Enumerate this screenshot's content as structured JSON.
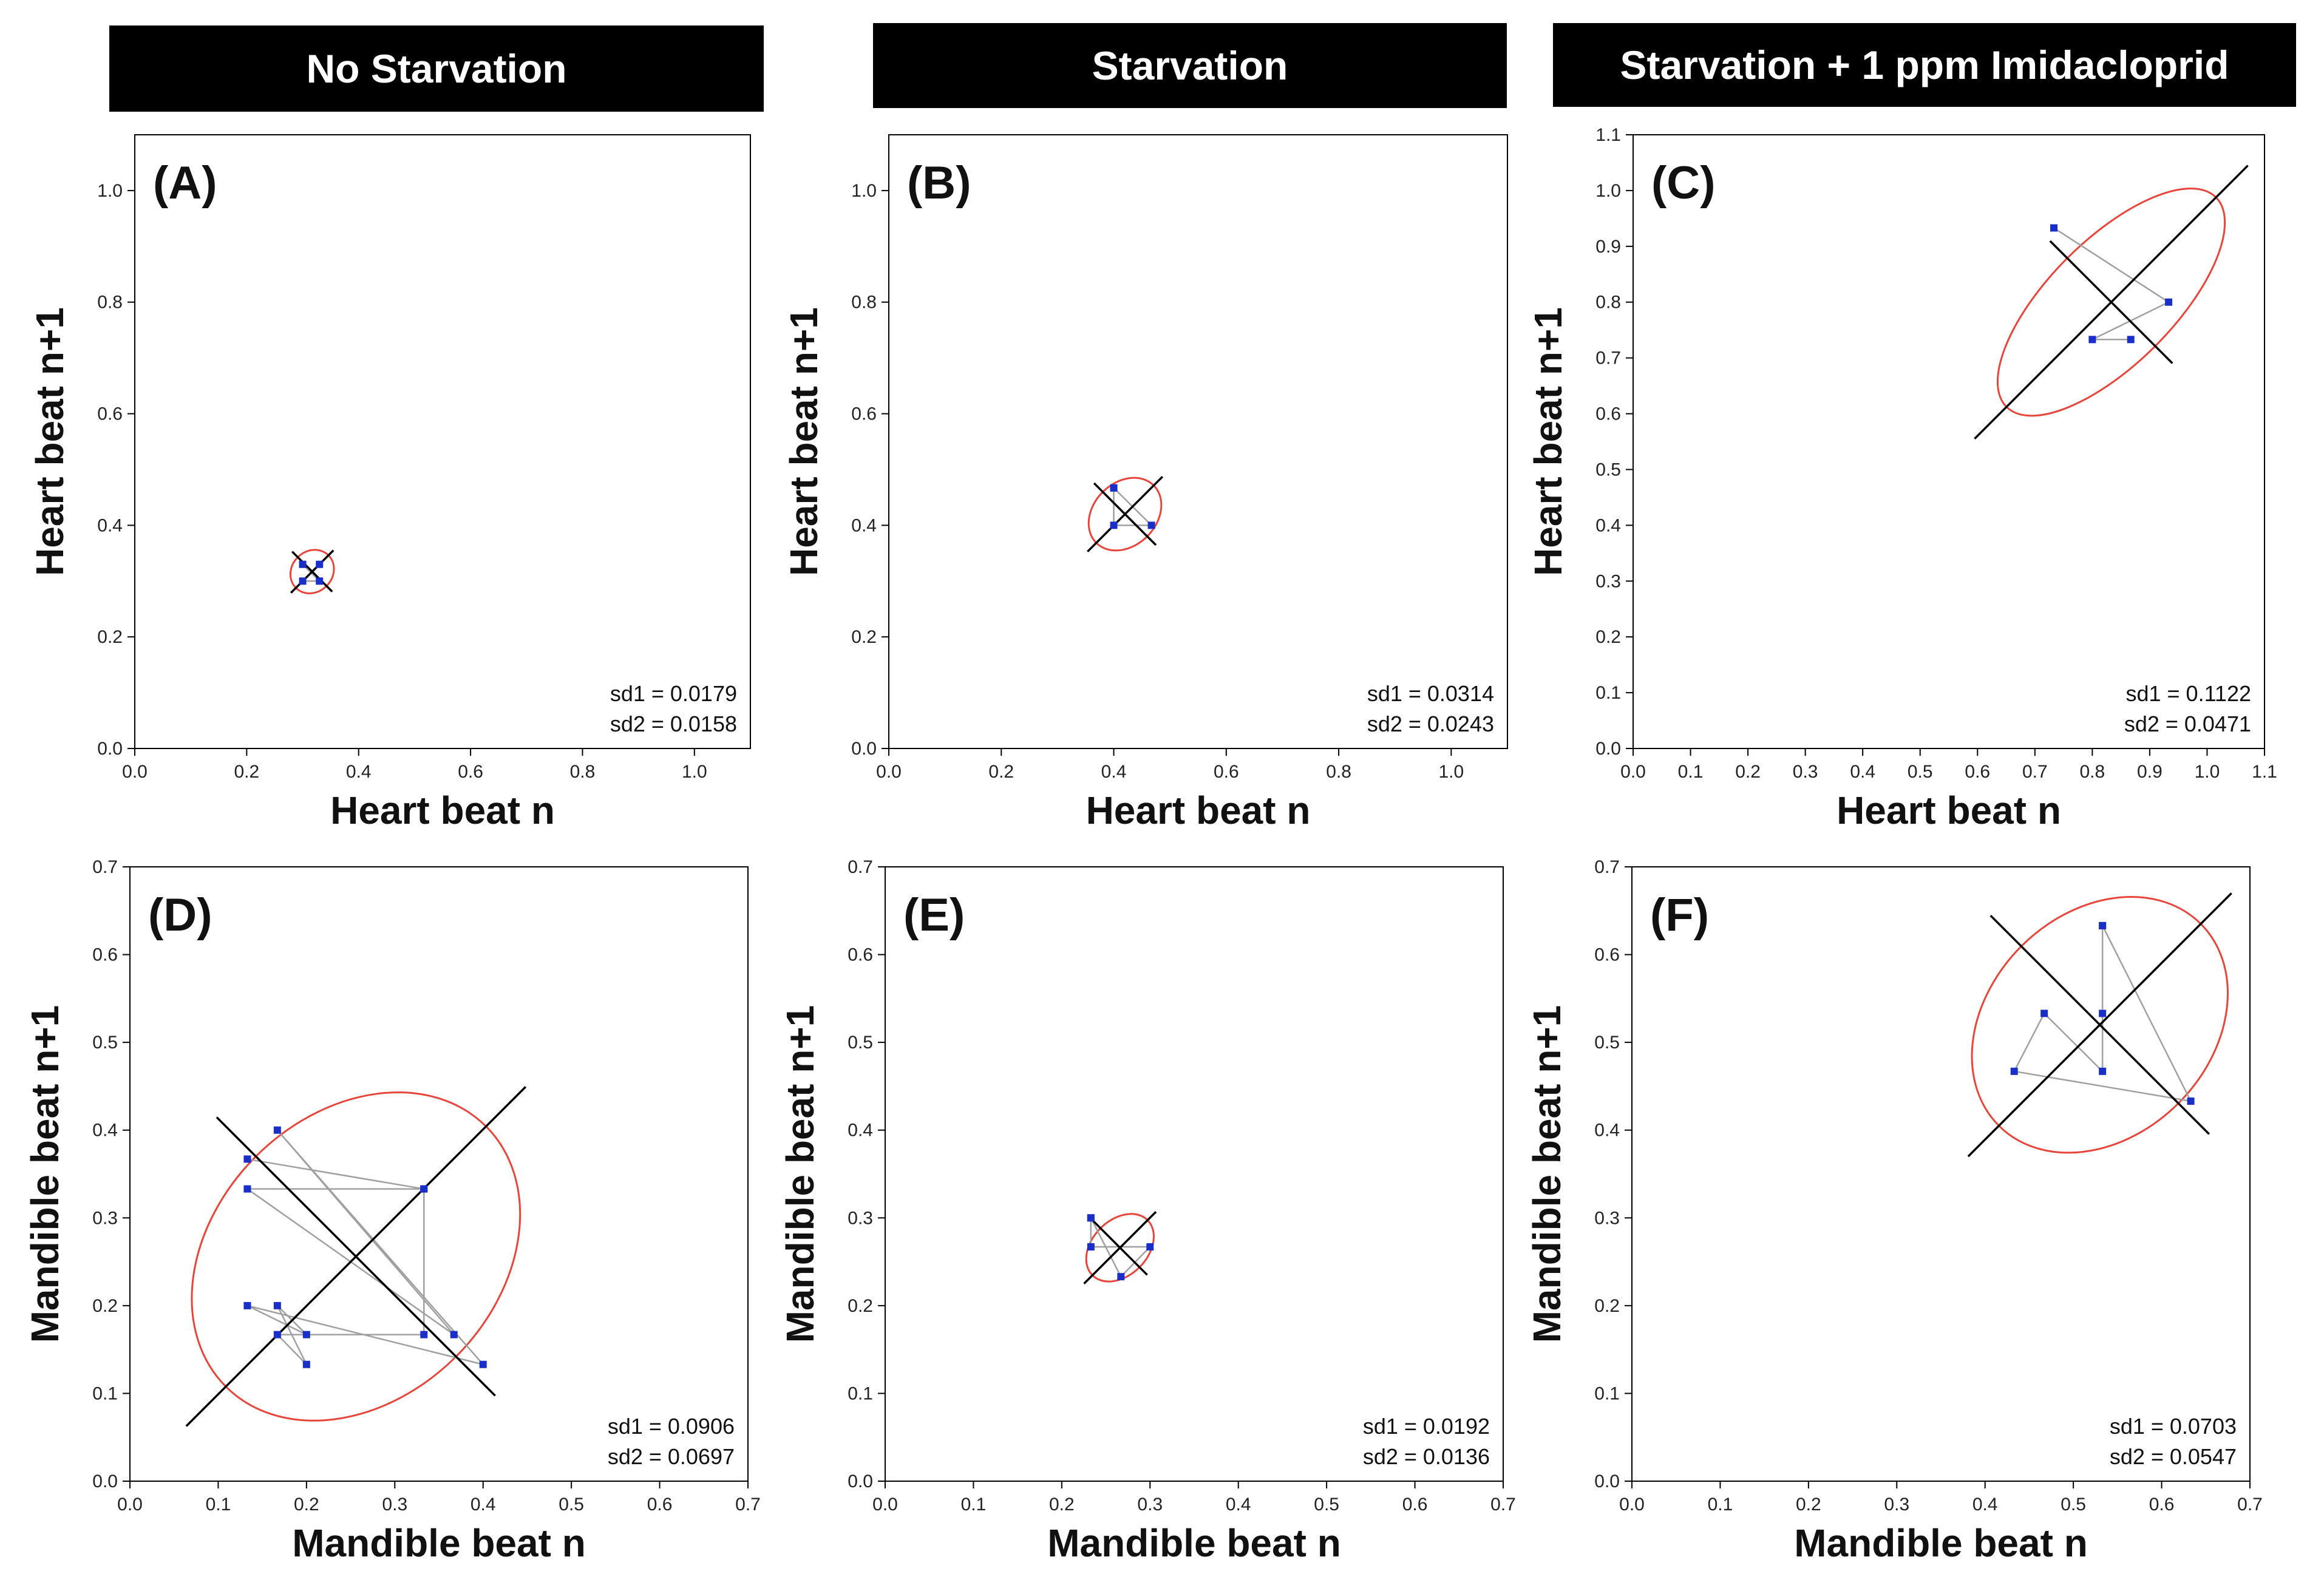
{
  "headers": [
    "No Starvation",
    "Starvation",
    "Starvation + 1 ppm Imidacloprid"
  ],
  "colors": {
    "ellipse": "#e8443a",
    "point": "#1a2fc8",
    "path": "#a0a0a0",
    "axis_line": "#000000",
    "frame": "#000000"
  },
  "chart_data": [
    {
      "type": "scatter",
      "panel": "(A)",
      "title": "No Starvation",
      "xlabel": "Heart beat n",
      "ylabel": "Heart beat n+1",
      "xlim": [
        0,
        1.1
      ],
      "ylim": [
        0,
        1.1
      ],
      "xticks": [
        0.0,
        0.2,
        0.4,
        0.6,
        0.8,
        1.0
      ],
      "yticks": [
        0.0,
        0.2,
        0.4,
        0.6,
        0.8,
        1.0
      ],
      "points": [
        [
          0.3,
          0.33
        ],
        [
          0.33,
          0.3
        ],
        [
          0.3,
          0.3
        ],
        [
          0.33,
          0.33
        ]
      ],
      "center": [
        0.317,
        0.317
      ],
      "sd1": 0.0179,
      "sd2": 0.0158,
      "sd1_label": "sd1 = 0.0179",
      "sd2_label": "sd2 = 0.0158"
    },
    {
      "type": "scatter",
      "panel": "(B)",
      "title": "Starvation",
      "xlabel": "Heart beat n",
      "ylabel": "Heart beat n+1",
      "xlim": [
        0,
        1.1
      ],
      "ylim": [
        0,
        1.1
      ],
      "xticks": [
        0.0,
        0.2,
        0.4,
        0.6,
        0.8,
        1.0
      ],
      "yticks": [
        0.0,
        0.2,
        0.4,
        0.6,
        0.8,
        1.0
      ],
      "points": [
        [
          0.4,
          0.467
        ],
        [
          0.4,
          0.4
        ],
        [
          0.467,
          0.4
        ],
        [
          0.4,
          0.467
        ]
      ],
      "center": [
        0.42,
        0.42
      ],
      "sd1": 0.0314,
      "sd2": 0.0243,
      "sd1_label": "sd1 = 0.0314",
      "sd2_label": "sd2 = 0.0243"
    },
    {
      "type": "scatter",
      "panel": "(C)",
      "title": "Starvation + 1 ppm Imidacloprid",
      "xlabel": "Heart beat n",
      "ylabel": "Heart beat n+1",
      "xlim": [
        0,
        1.1
      ],
      "ylim": [
        0,
        1.1
      ],
      "xticks": [
        0.0,
        0.1,
        0.2,
        0.3,
        0.4,
        0.5,
        0.6,
        0.7,
        0.8,
        0.9,
        1.0,
        1.1
      ],
      "yticks": [
        0.0,
        0.1,
        0.2,
        0.3,
        0.4,
        0.5,
        0.6,
        0.7,
        0.8,
        0.9,
        1.0,
        1.1
      ],
      "points": [
        [
          0.733,
          0.933
        ],
        [
          0.933,
          0.8
        ],
        [
          0.8,
          0.733
        ],
        [
          0.867,
          0.733
        ]
      ],
      "center": [
        0.833,
        0.8
      ],
      "sd1": 0.1122,
      "sd2": 0.0471,
      "sd1_label": "sd1 = 0.1122",
      "sd2_label": "sd2 = 0.0471"
    },
    {
      "type": "scatter",
      "panel": "(D)",
      "title": "No Starvation",
      "xlabel": "Mandible beat n",
      "ylabel": "Mandible beat n+1",
      "xlim": [
        0,
        0.7
      ],
      "ylim": [
        0,
        0.7
      ],
      "xticks": [
        0.0,
        0.1,
        0.2,
        0.3,
        0.4,
        0.5,
        0.6,
        0.7
      ],
      "yticks": [
        0.0,
        0.1,
        0.2,
        0.3,
        0.4,
        0.5,
        0.6,
        0.7
      ],
      "points": [
        [
          0.133,
          0.367
        ],
        [
          0.333,
          0.333
        ],
        [
          0.133,
          0.333
        ],
        [
          0.367,
          0.167
        ],
        [
          0.167,
          0.4
        ],
        [
          0.4,
          0.133
        ],
        [
          0.133,
          0.2
        ],
        [
          0.2,
          0.167
        ],
        [
          0.167,
          0.2
        ],
        [
          0.2,
          0.133
        ],
        [
          0.167,
          0.167
        ],
        [
          0.333,
          0.167
        ],
        [
          0.333,
          0.333
        ]
      ],
      "center": [
        0.256,
        0.256
      ],
      "sd1": 0.0906,
      "sd2": 0.0697,
      "sd1_label": "sd1 = 0.0906",
      "sd2_label": "sd2 = 0.0697"
    },
    {
      "type": "scatter",
      "panel": "(E)",
      "title": "Starvation",
      "xlabel": "Mandible beat n",
      "ylabel": "Mandible beat n+1",
      "xlim": [
        0,
        0.7
      ],
      "ylim": [
        0,
        0.7
      ],
      "xticks": [
        0.0,
        0.1,
        0.2,
        0.3,
        0.4,
        0.5,
        0.6,
        0.7
      ],
      "yticks": [
        0.0,
        0.1,
        0.2,
        0.3,
        0.4,
        0.5,
        0.6,
        0.7
      ],
      "points": [
        [
          0.233,
          0.3
        ],
        [
          0.267,
          0.233
        ],
        [
          0.3,
          0.267
        ],
        [
          0.233,
          0.267
        ],
        [
          0.233,
          0.3
        ]
      ],
      "center": [
        0.266,
        0.266
      ],
      "sd1": 0.0192,
      "sd2": 0.0136,
      "sd1_label": "sd1 = 0.0192",
      "sd2_label": "sd2 = 0.0136"
    },
    {
      "type": "scatter",
      "panel": "(F)",
      "title": "Starvation + 1 ppm Imidacloprid",
      "xlabel": "Mandible beat n",
      "ylabel": "Mandible beat n+1",
      "xlim": [
        0,
        0.7
      ],
      "ylim": [
        0,
        0.7
      ],
      "xticks": [
        0.0,
        0.1,
        0.2,
        0.3,
        0.4,
        0.5,
        0.6,
        0.7
      ],
      "yticks": [
        0.0,
        0.1,
        0.2,
        0.3,
        0.4,
        0.5,
        0.6,
        0.7
      ],
      "points": [
        [
          0.533,
          0.633
        ],
        [
          0.633,
          0.433
        ],
        [
          0.433,
          0.467
        ],
        [
          0.467,
          0.533
        ],
        [
          0.533,
          0.467
        ],
        [
          0.533,
          0.533
        ],
        [
          0.533,
          0.633
        ]
      ],
      "center": [
        0.53,
        0.52
      ],
      "sd1": 0.0703,
      "sd2": 0.0547,
      "sd1_label": "sd1 = 0.0703",
      "sd2_label": "sd2 = 0.0547"
    }
  ]
}
